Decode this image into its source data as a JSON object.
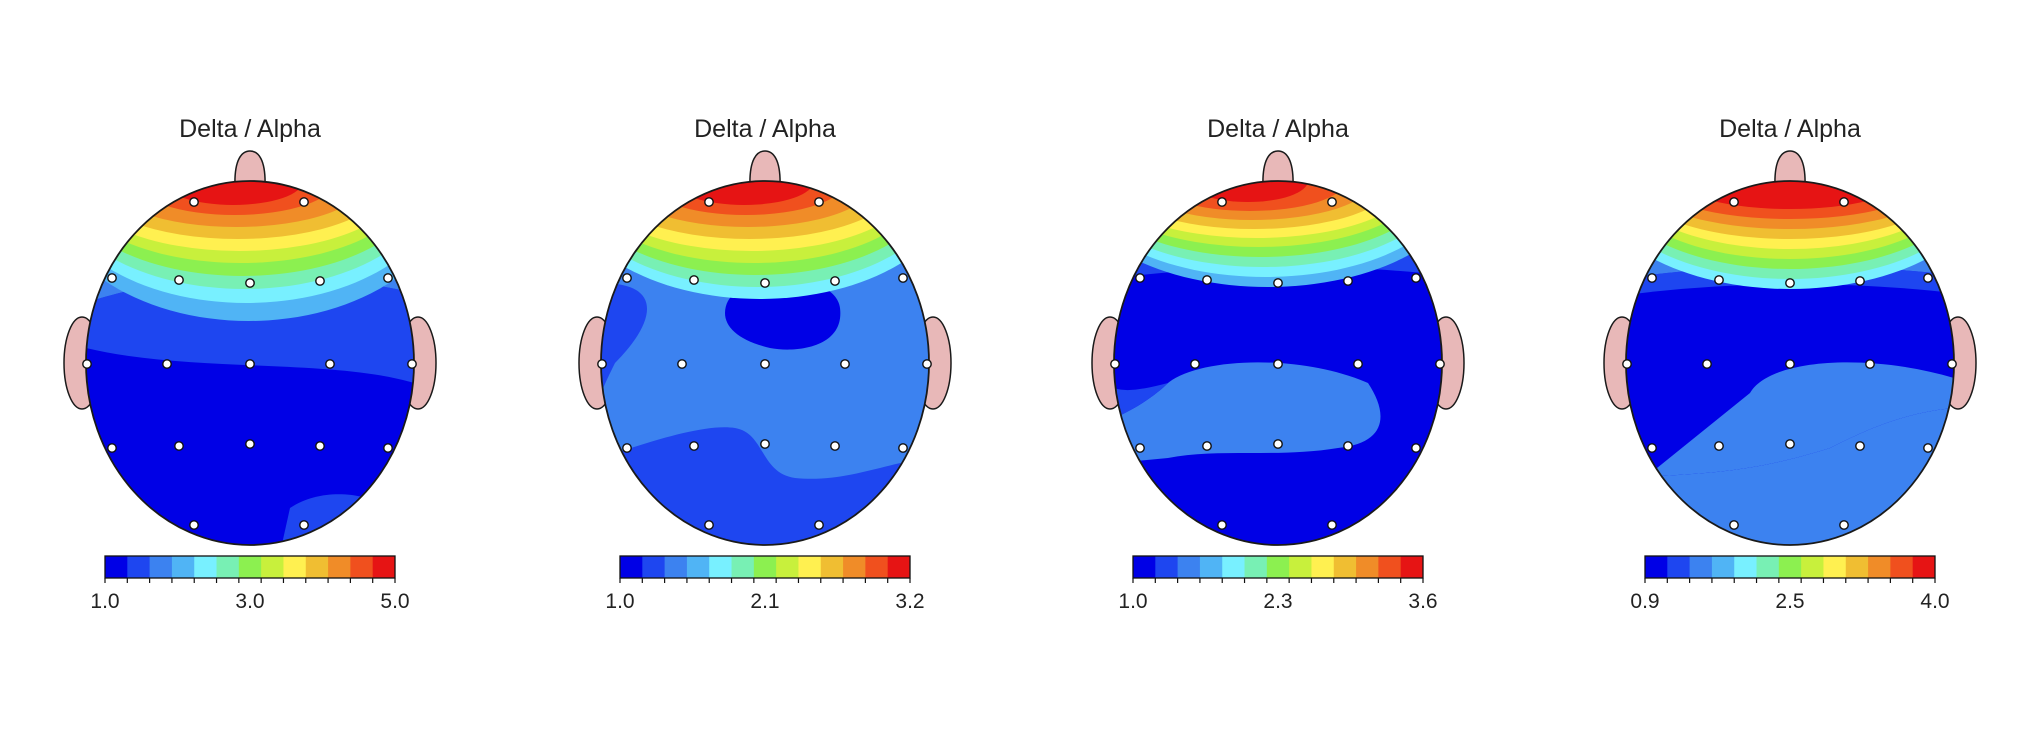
{
  "chart_data": [
    {
      "type": "heatmap",
      "title": "Delta / Alpha",
      "colorbar": {
        "min": 1.0,
        "max": 5.0,
        "tick_labels": [
          "1.0",
          "3.0",
          "5.0"
        ]
      },
      "electrodes": 19
    },
    {
      "type": "heatmap",
      "title": "Delta / Alpha",
      "colorbar": {
        "min": 1.0,
        "max": 3.2,
        "tick_labels": [
          "1.0",
          "2.1",
          "3.2"
        ]
      },
      "electrodes": 19
    },
    {
      "type": "heatmap",
      "title": "Delta / Alpha",
      "colorbar": {
        "min": 1.0,
        "max": 3.6,
        "tick_labels": [
          "1.0",
          "2.3",
          "3.6"
        ]
      },
      "electrodes": 19
    },
    {
      "type": "heatmap",
      "title": "Delta / Alpha",
      "colorbar": {
        "min": 0.9,
        "max": 4.0,
        "tick_labels": [
          "0.9",
          "2.5",
          "4.0"
        ]
      },
      "electrodes": 19
    }
  ],
  "colors": {
    "scale": [
      "#0000e6",
      "#1e46f0",
      "#3c82f0",
      "#50b4f5",
      "#78f0ff",
      "#78f0b4",
      "#8cf050",
      "#c8f03c",
      "#fff050",
      "#f0be32",
      "#f08c28",
      "#f0501e",
      "#e61414"
    ],
    "head_outline": "#1a1a1a",
    "ear_nose_fill": "#e8b8b8"
  }
}
